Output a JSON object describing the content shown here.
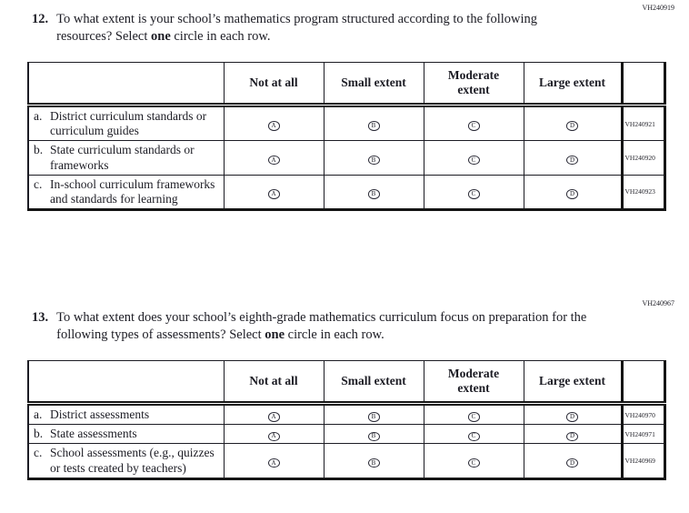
{
  "questions": [
    {
      "code": "VH240919",
      "number": "12.",
      "text_pre": "To what extent is your school’s mathematics program structured according to the following resources? Select ",
      "text_bold": "one",
      "text_post": " circle in each row."
    },
    {
      "code": "VH240967",
      "number": "13.",
      "text_pre": "To what extent does your school’s eighth-grade mathematics curriculum focus on preparation for the following types of assessments? Select ",
      "text_bold": "one",
      "text_post": " circle in each row."
    }
  ],
  "answer_scale": [
    "Not at all",
    "Small extent",
    "Moderate extent",
    "Large extent"
  ],
  "tables": [
    {
      "headers": [
        "",
        "Not at all",
        "Small extent",
        "Moderate extent",
        "Large extent",
        ""
      ],
      "rows": [
        {
          "prefix": "a.",
          "label": "District curriculum standards or curriculum guides",
          "options": [
            "A",
            "B",
            "C",
            "D"
          ],
          "code": "VH240921"
        },
        {
          "prefix": "b.",
          "label": "State curriculum standards or frameworks",
          "options": [
            "A",
            "B",
            "C",
            "D"
          ],
          "code": "VH240920"
        },
        {
          "prefix": "c.",
          "label": "In-school curriculum frameworks and standards for learning",
          "options": [
            "A",
            "B",
            "C",
            "D"
          ],
          "code": "VH240923"
        }
      ]
    },
    {
      "headers": [
        "",
        "Not at all",
        "Small extent",
        "Moderate extent",
        "Large extent",
        ""
      ],
      "rows": [
        {
          "prefix": "a.",
          "label": "District assessments",
          "options": [
            "A",
            "B",
            "C",
            "D"
          ],
          "code": "VH240970"
        },
        {
          "prefix": "b.",
          "label": "State assessments",
          "options": [
            "A",
            "B",
            "C",
            "D"
          ],
          "code": "VH240971"
        },
        {
          "prefix": "c.",
          "label": "School assessments (e.g., quizzes or tests created by teachers)",
          "options": [
            "A",
            "B",
            "C",
            "D"
          ],
          "code": "VH240969"
        }
      ]
    }
  ]
}
